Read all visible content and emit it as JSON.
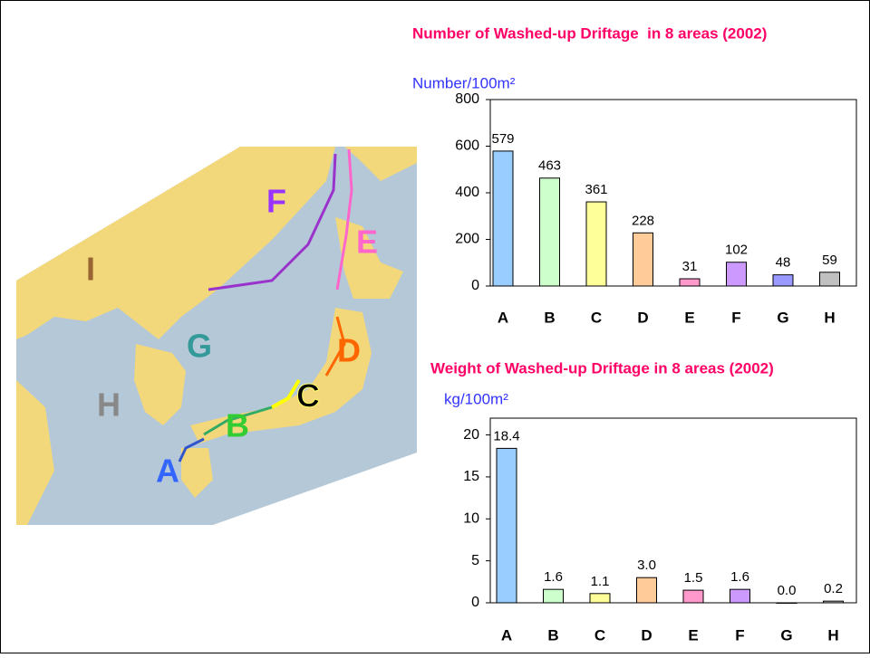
{
  "chart_data": [
    {
      "type": "bar",
      "title": "Number of Washed-up Driftage  in 8 areas (2002)",
      "y_label": "Number/100m²",
      "categories": [
        "A",
        "B",
        "C",
        "D",
        "E",
        "F",
        "G",
        "H"
      ],
      "values": [
        579,
        463,
        361,
        228,
        31,
        102,
        48,
        59
      ],
      "colors": [
        "#99ccff",
        "#ccffcc",
        "#ffff99",
        "#ffcc99",
        "#ff99cc",
        "#cc99ff",
        "#9999ff",
        "#c0c0c0"
      ],
      "ylim": [
        0,
        800
      ],
      "yticks": [
        0,
        200,
        400,
        600,
        800
      ]
    },
    {
      "type": "bar",
      "title": "Weight of Washed-up Driftage in 8 areas (2002)",
      "y_label": "kg/100m²",
      "categories": [
        "A",
        "B",
        "C",
        "D",
        "E",
        "F",
        "G",
        "H"
      ],
      "values": [
        18.4,
        1.6,
        1.1,
        3.0,
        1.5,
        1.6,
        0.0,
        0.2
      ],
      "value_labels": [
        "18.4",
        "1.6",
        "1.1",
        "3.0",
        "1.5",
        "1.6",
        "0.0",
        "0.2"
      ],
      "colors": [
        "#99ccff",
        "#ccffcc",
        "#ffff99",
        "#ffcc99",
        "#ff99cc",
        "#cc99ff",
        "#9999ff",
        "#c0c0c0"
      ],
      "ylim": [
        0,
        22
      ],
      "yticks": [
        0,
        5,
        10,
        15,
        20
      ]
    }
  ],
  "map": {
    "labels": [
      "F",
      "E",
      "I",
      "G",
      "D",
      "H",
      "C",
      "B",
      "A"
    ]
  }
}
